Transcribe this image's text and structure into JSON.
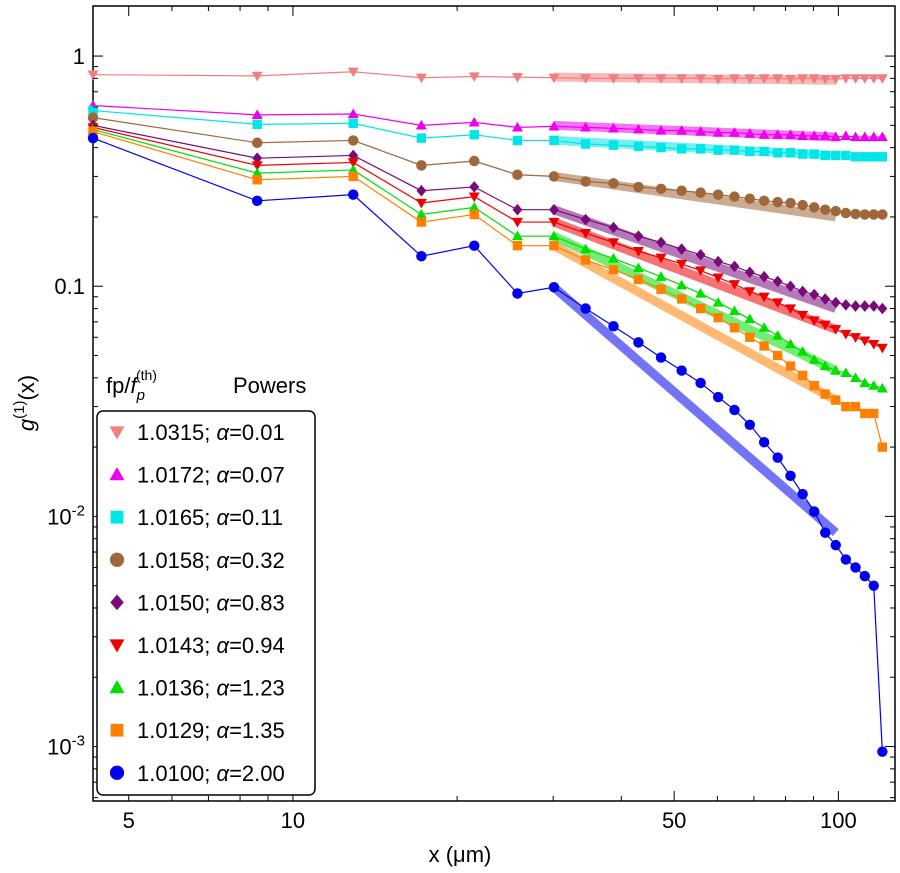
{
  "chart_data": {
    "type": "line",
    "xscale": "log",
    "yscale": "log",
    "xlabel": "x (μm)",
    "ylabel": "g(1)(x)",
    "xlim": [
      4.3,
      127
    ],
    "ylim": [
      0.00058,
      1.65
    ],
    "x_ticks": [
      {
        "value": 5,
        "label": "5"
      },
      {
        "value": 10,
        "label": "10"
      },
      {
        "value": 50,
        "label": "50"
      },
      {
        "value": 100,
        "label": "100"
      }
    ],
    "y_ticks": [
      {
        "value": 1,
        "label": "1",
        "sup": ""
      },
      {
        "value": 0.1,
        "label": "0.1",
        "sup": ""
      },
      {
        "value": 0.01,
        "label": "10",
        "sup": "-2"
      },
      {
        "value": 0.001,
        "label": "10",
        "sup": "-3"
      }
    ],
    "legend": {
      "position": "bottom-left",
      "header_col1_base": "fp/",
      "header_col1_italic": "f",
      "header_col1_sub": "p",
      "header_col1_sup": "(th)",
      "header_col2": "Powers",
      "alpha_symbol": "α"
    },
    "x": [
      4.3,
      8.6,
      12.9,
      17.2,
      21.5,
      25.8,
      30.1,
      34.4,
      38.7,
      43,
      47.3,
      51.6,
      55.9,
      60.2,
      64.5,
      68.8,
      73.1,
      77.4,
      81.7,
      86,
      90.3,
      94.6,
      98.9,
      103.2,
      107.5,
      111.8,
      116.1,
      120.4
    ],
    "series": [
      {
        "name": "1.0315",
        "alpha": "0.01",
        "color": "#f08080",
        "marker": "triangle-down",
        "values": [
          0.83,
          0.82,
          0.855,
          0.805,
          0.815,
          0.81,
          0.805,
          0.8,
          0.8,
          0.8,
          0.8,
          0.8,
          0.8,
          0.795,
          0.8,
          0.8,
          0.8,
          0.8,
          0.795,
          0.8,
          0.8,
          0.795,
          0.795,
          0.8,
          0.8,
          0.8,
          0.8,
          0.8
        ],
        "fit": {
          "x": [
            30.1,
            98.9
          ],
          "y": [
            0.81,
            0.785
          ]
        }
      },
      {
        "name": "1.0172",
        "alpha": "0.07",
        "color": "#ee00ee",
        "marker": "triangle-up",
        "values": [
          0.61,
          0.555,
          0.56,
          0.5,
          0.515,
          0.49,
          0.495,
          0.49,
          0.485,
          0.48,
          0.475,
          0.475,
          0.47,
          0.465,
          0.465,
          0.46,
          0.455,
          0.455,
          0.455,
          0.45,
          0.45,
          0.45,
          0.445,
          0.45,
          0.445,
          0.445,
          0.445,
          0.445
        ],
        "fit": {
          "x": [
            30.1,
            98.9
          ],
          "y": [
            0.5,
            0.445
          ]
        }
      },
      {
        "name": "1.0165",
        "alpha": "0.11",
        "color": "#00e5e5",
        "marker": "square",
        "values": [
          0.58,
          0.505,
          0.51,
          0.44,
          0.455,
          0.43,
          0.43,
          0.415,
          0.41,
          0.405,
          0.4,
          0.395,
          0.395,
          0.39,
          0.39,
          0.385,
          0.385,
          0.38,
          0.38,
          0.375,
          0.375,
          0.37,
          0.37,
          0.37,
          0.365,
          0.365,
          0.365,
          0.365
        ],
        "fit": {
          "x": [
            30.1,
            98.9
          ],
          "y": [
            0.43,
            0.37
          ]
        }
      },
      {
        "name": "1.0158",
        "alpha": "0.32",
        "color": "#a0673a",
        "marker": "circle",
        "values": [
          0.54,
          0.42,
          0.43,
          0.335,
          0.35,
          0.305,
          0.3,
          0.285,
          0.28,
          0.27,
          0.265,
          0.26,
          0.255,
          0.25,
          0.245,
          0.24,
          0.235,
          0.232,
          0.23,
          0.225,
          0.22,
          0.215,
          0.212,
          0.208,
          0.206,
          0.205,
          0.205,
          0.205
        ],
        "fit": {
          "x": [
            30.1,
            98.9
          ],
          "y": [
            0.3,
            0.2
          ]
        }
      },
      {
        "name": "1.0150",
        "alpha": "0.83",
        "color": "#7a0a7a",
        "marker": "diamond",
        "values": [
          0.5,
          0.36,
          0.37,
          0.26,
          0.27,
          0.215,
          0.215,
          0.195,
          0.18,
          0.165,
          0.155,
          0.145,
          0.137,
          0.128,
          0.122,
          0.115,
          0.11,
          0.105,
          0.1,
          0.095,
          0.092,
          0.088,
          0.085,
          0.083,
          0.082,
          0.082,
          0.082,
          0.08
        ],
        "fit": {
          "x": [
            30.1,
            98.9
          ],
          "y": [
            0.215,
            0.08
          ]
        }
      },
      {
        "name": "1.0143",
        "alpha": "0.94",
        "color": "#ee0000",
        "marker": "triangle-down",
        "values": [
          0.49,
          0.335,
          0.345,
          0.23,
          0.245,
          0.19,
          0.19,
          0.17,
          0.155,
          0.142,
          0.133,
          0.125,
          0.117,
          0.109,
          0.102,
          0.095,
          0.09,
          0.085,
          0.08,
          0.075,
          0.071,
          0.068,
          0.065,
          0.062,
          0.06,
          0.058,
          0.056,
          0.054
        ],
        "fit": {
          "x": [
            30.1,
            98.9
          ],
          "y": [
            0.19,
            0.065
          ]
        }
      },
      {
        "name": "1.0136",
        "alpha": "1.23",
        "color": "#00e000",
        "marker": "triangle-up",
        "values": [
          0.48,
          0.31,
          0.32,
          0.205,
          0.22,
          0.165,
          0.165,
          0.145,
          0.132,
          0.12,
          0.11,
          0.101,
          0.093,
          0.085,
          0.078,
          0.072,
          0.066,
          0.061,
          0.056,
          0.052,
          0.048,
          0.045,
          0.043,
          0.042,
          0.04,
          0.038,
          0.037,
          0.036
        ],
        "fit": {
          "x": [
            30.1,
            98.9
          ],
          "y": [
            0.165,
            0.043
          ]
        }
      },
      {
        "name": "1.0129",
        "alpha": "1.35",
        "color": "#ff8000",
        "marker": "square",
        "values": [
          0.47,
          0.29,
          0.3,
          0.19,
          0.205,
          0.15,
          0.15,
          0.13,
          0.118,
          0.107,
          0.097,
          0.088,
          0.08,
          0.073,
          0.066,
          0.06,
          0.055,
          0.05,
          0.045,
          0.041,
          0.037,
          0.034,
          0.032,
          0.03,
          0.03,
          0.028,
          0.028,
          0.02
        ],
        "fit": {
          "x": [
            30.1,
            98.9
          ],
          "y": [
            0.15,
            0.032
          ]
        }
      },
      {
        "name": "1.0100",
        "alpha": "2.00",
        "color": "#0000ee",
        "marker": "circle",
        "values": [
          0.44,
          0.235,
          0.25,
          0.135,
          0.15,
          0.093,
          0.099,
          0.08,
          0.067,
          0.057,
          0.049,
          0.043,
          0.038,
          0.033,
          0.029,
          0.025,
          0.021,
          0.018,
          0.015,
          0.0125,
          0.0105,
          0.0085,
          0.0075,
          0.0065,
          0.006,
          0.0055,
          0.005,
          0.00095
        ],
        "fit": {
          "x": [
            30.1,
            98.9
          ],
          "y": [
            0.099,
            0.0085
          ]
        }
      }
    ]
  }
}
